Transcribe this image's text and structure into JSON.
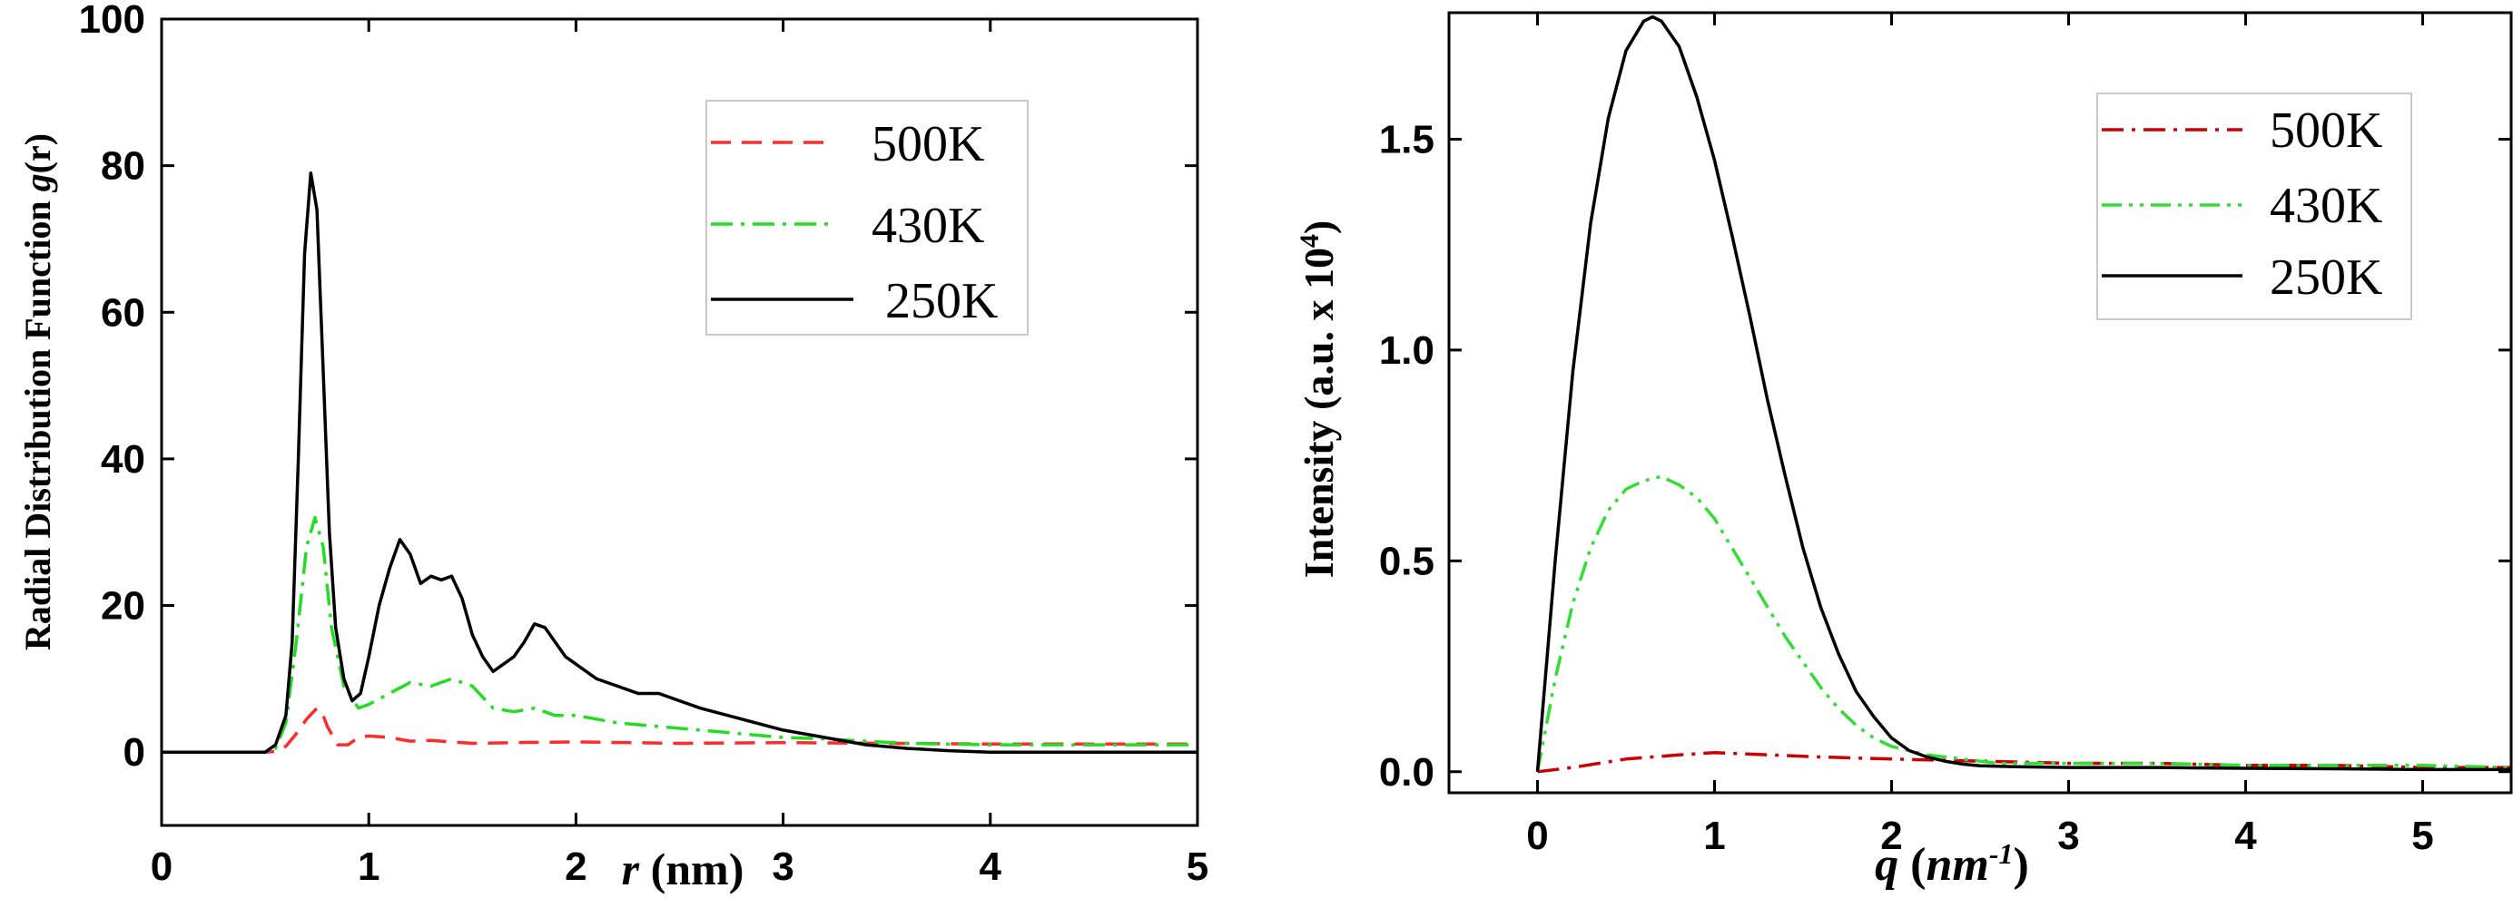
{
  "chart_data": [
    {
      "type": "line",
      "title": "",
      "xlabel_italic": "r",
      "xlabel_rest": " (nm)",
      "ylabel_prefix": "Radial Distribution Function ",
      "ylabel_italic": "g",
      "ylabel_suffix": "(r)",
      "xlim": [
        0,
        5
      ],
      "ylim": [
        -10,
        100
      ],
      "xticks": [
        0,
        1,
        2,
        3,
        4,
        5
      ],
      "yticks": [
        0,
        20,
        40,
        60,
        80,
        100
      ],
      "xtick_labels": [
        "0",
        "1",
        "2",
        "3",
        "4",
        "5"
      ],
      "ytick_labels": [
        "0",
        "20",
        "40",
        "60",
        "80",
        "100"
      ],
      "legend_position": "top-right",
      "series": [
        {
          "name": "500K",
          "color": "#ff2a2a",
          "dash": "dashed",
          "x": [
            0,
            0.5,
            0.55,
            0.6,
            0.65,
            0.7,
            0.75,
            0.78,
            0.8,
            0.85,
            0.9,
            0.95,
            1.0,
            1.1,
            1.2,
            1.3,
            1.5,
            1.7,
            2.0,
            2.5,
            3.0,
            3.5,
            4.0,
            4.5,
            5.0
          ],
          "y": [
            0,
            0,
            0.1,
            0.8,
            2.5,
            4.5,
            6.0,
            5.0,
            3.5,
            1.0,
            1.0,
            2.0,
            2.2,
            2.0,
            1.5,
            1.6,
            1.2,
            1.3,
            1.4,
            1.2,
            1.3,
            1.2,
            1.1,
            1.1,
            1.1
          ]
        },
        {
          "name": "430K",
          "color": "#22dd22",
          "dash": "dashdot",
          "x": [
            0,
            0.5,
            0.55,
            0.6,
            0.65,
            0.7,
            0.74,
            0.78,
            0.82,
            0.88,
            0.95,
            1.0,
            1.1,
            1.2,
            1.3,
            1.4,
            1.5,
            1.6,
            1.7,
            1.8,
            1.9,
            2.0,
            2.2,
            2.4,
            2.6,
            2.8,
            3.0,
            3.2,
            3.4,
            3.6,
            4.0,
            4.5,
            5.0
          ],
          "y": [
            0,
            0,
            0.5,
            4.0,
            15.0,
            28.0,
            32.0,
            28.0,
            17.0,
            9.0,
            6.0,
            6.5,
            8.0,
            9.5,
            9.0,
            10.0,
            9.0,
            6.0,
            5.5,
            6.0,
            5.0,
            5.0,
            4.0,
            3.5,
            3.0,
            2.5,
            2.0,
            1.8,
            1.5,
            1.2,
            1.0,
            1.0,
            1.0
          ]
        },
        {
          "name": "250K",
          "color": "#000000",
          "dash": "solid",
          "x": [
            0,
            0.5,
            0.55,
            0.6,
            0.63,
            0.66,
            0.69,
            0.72,
            0.75,
            0.78,
            0.81,
            0.84,
            0.88,
            0.92,
            0.96,
            1.0,
            1.05,
            1.1,
            1.15,
            1.2,
            1.25,
            1.3,
            1.35,
            1.4,
            1.45,
            1.5,
            1.55,
            1.6,
            1.65,
            1.7,
            1.75,
            1.8,
            1.85,
            1.9,
            1.95,
            2.0,
            2.1,
            2.2,
            2.3,
            2.4,
            2.5,
            2.6,
            2.8,
            3.0,
            3.2,
            3.4,
            3.6,
            3.8,
            4.0,
            4.5,
            5.0
          ],
          "y": [
            0,
            0,
            1.0,
            5.0,
            15.0,
            40.0,
            68.0,
            79.0,
            74.0,
            52.0,
            30.0,
            17.0,
            10.0,
            7.0,
            8.0,
            13.0,
            20.0,
            25.0,
            29.0,
            27.0,
            23.0,
            24.0,
            23.5,
            24.0,
            21.0,
            16.0,
            13.0,
            11.0,
            12.0,
            13.0,
            15.0,
            17.5,
            17.0,
            15.0,
            13.0,
            12.0,
            10.0,
            9.0,
            8.0,
            8.0,
            7.0,
            6.0,
            4.5,
            3.0,
            2.0,
            1.0,
            0.5,
            0.2,
            0.0,
            0.0,
            0.0
          ]
        }
      ]
    },
    {
      "type": "line",
      "title": "",
      "xlabel_italic_main": "q",
      "xlabel_paren_open": " (",
      "xlabel_unit": "nm",
      "xlabel_exp": "-1",
      "xlabel_paren_close": ")",
      "ylabel_main": "Intensity (a.u. x 10",
      "ylabel_exp": "4",
      "ylabel_close": ")",
      "xlim": [
        -0.5,
        5.5
      ],
      "ylim": [
        -0.05,
        1.8
      ],
      "xticks": [
        0,
        1,
        2,
        3,
        4,
        5
      ],
      "yticks": [
        0.0,
        0.5,
        1.0,
        1.5
      ],
      "xtick_labels": [
        "0",
        "1",
        "2",
        "3",
        "4",
        "5"
      ],
      "ytick_labels": [
        "0.0",
        "0.5",
        "1.0",
        "1.5"
      ],
      "legend_position": "top-right",
      "series": [
        {
          "name": "500K",
          "color": "#cc0000",
          "dash": "dashdot",
          "x": [
            0,
            0.2,
            0.5,
            0.8,
            1.0,
            1.3,
            1.6,
            2.0,
            2.5,
            3.0,
            3.5,
            4.0,
            4.5,
            5.0,
            5.5
          ],
          "y": [
            0.0,
            0.01,
            0.03,
            0.04,
            0.045,
            0.04,
            0.035,
            0.03,
            0.025,
            0.02,
            0.02,
            0.015,
            0.015,
            0.01,
            0.01
          ]
        },
        {
          "name": "430K",
          "color": "#33dd33",
          "dash": "dashdotdot",
          "x": [
            0,
            0.1,
            0.2,
            0.3,
            0.4,
            0.5,
            0.6,
            0.7,
            0.8,
            0.9,
            1.0,
            1.1,
            1.2,
            1.3,
            1.4,
            1.5,
            1.6,
            1.7,
            1.8,
            1.9,
            2.0,
            2.1,
            2.2,
            2.4,
            2.6,
            3.0,
            3.5,
            4.0,
            4.5,
            5.0,
            5.5
          ],
          "y": [
            0.0,
            0.22,
            0.4,
            0.53,
            0.62,
            0.67,
            0.69,
            0.7,
            0.68,
            0.65,
            0.6,
            0.53,
            0.46,
            0.39,
            0.32,
            0.26,
            0.2,
            0.15,
            0.11,
            0.08,
            0.06,
            0.05,
            0.04,
            0.03,
            0.02,
            0.02,
            0.02,
            0.015,
            0.015,
            0.015,
            0.01
          ]
        },
        {
          "name": "250K",
          "color": "#000000",
          "dash": "solid",
          "x": [
            0,
            0.1,
            0.2,
            0.3,
            0.4,
            0.5,
            0.6,
            0.65,
            0.7,
            0.8,
            0.9,
            1.0,
            1.1,
            1.2,
            1.3,
            1.4,
            1.5,
            1.6,
            1.7,
            1.8,
            1.9,
            2.0,
            2.1,
            2.2,
            2.3,
            2.4,
            2.5,
            2.7,
            3.0,
            3.5,
            4.0,
            4.5,
            5.0,
            5.5
          ],
          "y": [
            0.0,
            0.5,
            0.95,
            1.3,
            1.55,
            1.71,
            1.78,
            1.79,
            1.78,
            1.72,
            1.6,
            1.45,
            1.27,
            1.08,
            0.88,
            0.7,
            0.53,
            0.39,
            0.28,
            0.19,
            0.13,
            0.08,
            0.05,
            0.035,
            0.025,
            0.018,
            0.014,
            0.012,
            0.01,
            0.01,
            0.008,
            0.007,
            0.005,
            0.005
          ]
        }
      ]
    }
  ]
}
